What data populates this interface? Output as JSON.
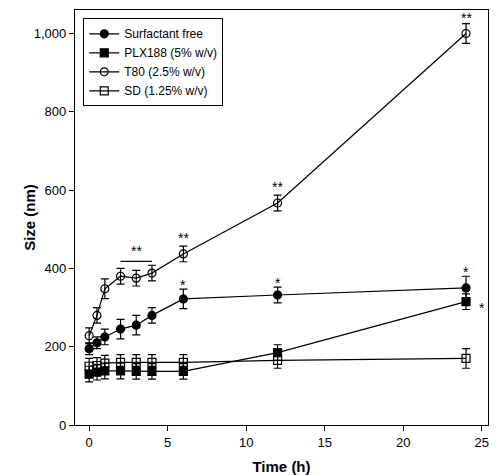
{
  "chart_data": {
    "type": "line",
    "x_label": "Time (h)",
    "y_label": "Size (nm)",
    "xlim": [
      -0.9,
      25.4
    ],
    "xticks": [
      0,
      5,
      10,
      15,
      20,
      25
    ],
    "ylim": [
      0,
      1060
    ],
    "yticks": [
      0,
      200,
      400,
      600,
      800,
      {
        "value": 1000,
        "label": "1,000"
      }
    ],
    "grid": false,
    "legend": "top left",
    "x": [
      0,
      0.5,
      1,
      2,
      3,
      4,
      6,
      12,
      24
    ],
    "series": [
      {
        "name": "Surfactant free",
        "color": "#000000",
        "marker": "circle",
        "line_style": "solid",
        "values": [
          195,
          210,
          225,
          245,
          255,
          280,
          322,
          332,
          350
        ],
        "errors": [
          15,
          15,
          20,
          25,
          25,
          20,
          25,
          20,
          30
        ]
      },
      {
        "name": "PLX188 (5% w/v)",
        "color": "#000000",
        "marker": "square",
        "line_style": "solid",
        "values": [
          130,
          135,
          138,
          138,
          137,
          137,
          137,
          185,
          315
        ],
        "errors": [
          20,
          20,
          20,
          20,
          20,
          20,
          20,
          20,
          20
        ]
      },
      {
        "name": "T80 (2.5% w/v)",
        "color": "#000000",
        "marker": "circle-open",
        "line_style": "solid",
        "values": [
          228,
          280,
          348,
          380,
          375,
          388,
          437,
          567,
          1000
        ],
        "errors": [
          20,
          20,
          25,
          20,
          20,
          20,
          20,
          20,
          25
        ]
      },
      {
        "name": "SD (1.25% w/v)",
        "color": "#000000",
        "marker": "square-open",
        "line_style": "solid",
        "values": [
          150,
          152,
          158,
          160,
          160,
          160,
          160,
          165,
          170
        ],
        "errors": [
          20,
          20,
          20,
          20,
          20,
          20,
          20,
          20,
          25
        ]
      }
    ],
    "annotations": [
      {
        "text": "**",
        "x": 2,
        "x_end": 4,
        "y": 418
      },
      {
        "text": "**",
        "x": 6,
        "y": 478
      },
      {
        "text": "**",
        "x": 12,
        "y": 608
      },
      {
        "text": "**",
        "x": 24,
        "y": 1040
      },
      {
        "text": "*",
        "x": 6,
        "y": 358
      },
      {
        "text": "*",
        "x": 12,
        "y": 362
      },
      {
        "text": "*",
        "x": 24,
        "y": 390
      },
      {
        "text": "*",
        "x": 25,
        "y": 300
      }
    ]
  }
}
